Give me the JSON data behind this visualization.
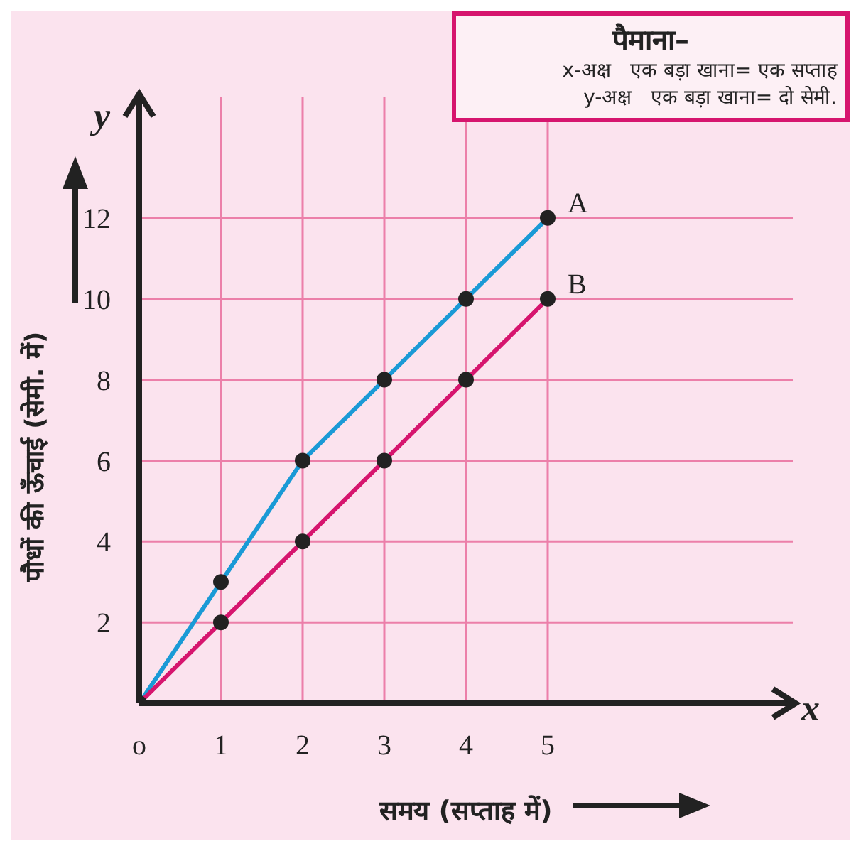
{
  "chart_data": {
    "type": "line",
    "xlabel": "समय (सप्ताह में)",
    "ylabel": "पौधों की ऊँचाई (सेमी. में)",
    "x": [
      0,
      1,
      2,
      3,
      4,
      5
    ],
    "series": [
      {
        "name": "A",
        "color": "#1a9ad6",
        "values": [
          0,
          3,
          6,
          8,
          10,
          12
        ]
      },
      {
        "name": "B",
        "color": "#d6156e",
        "values": [
          0,
          2,
          4,
          6,
          8,
          10
        ]
      }
    ],
    "xlim": [
      0,
      8
    ],
    "xticks": [
      {
        "value": 0,
        "label": "o"
      },
      1,
      2,
      3,
      4,
      5
    ],
    "ylim": [
      0,
      15
    ],
    "yticks": [
      2,
      4,
      6,
      8,
      10,
      12
    ],
    "grid": true,
    "marker": "circle",
    "line_style": "solid",
    "annotations": [
      "पैमाना–",
      "x-अक्ष   एक बड़ा खाना= एक सप्ताह",
      "y-अक्ष   एक बड़ा खाना= दो सेमी.",
      "x",
      "y"
    ]
  }
}
